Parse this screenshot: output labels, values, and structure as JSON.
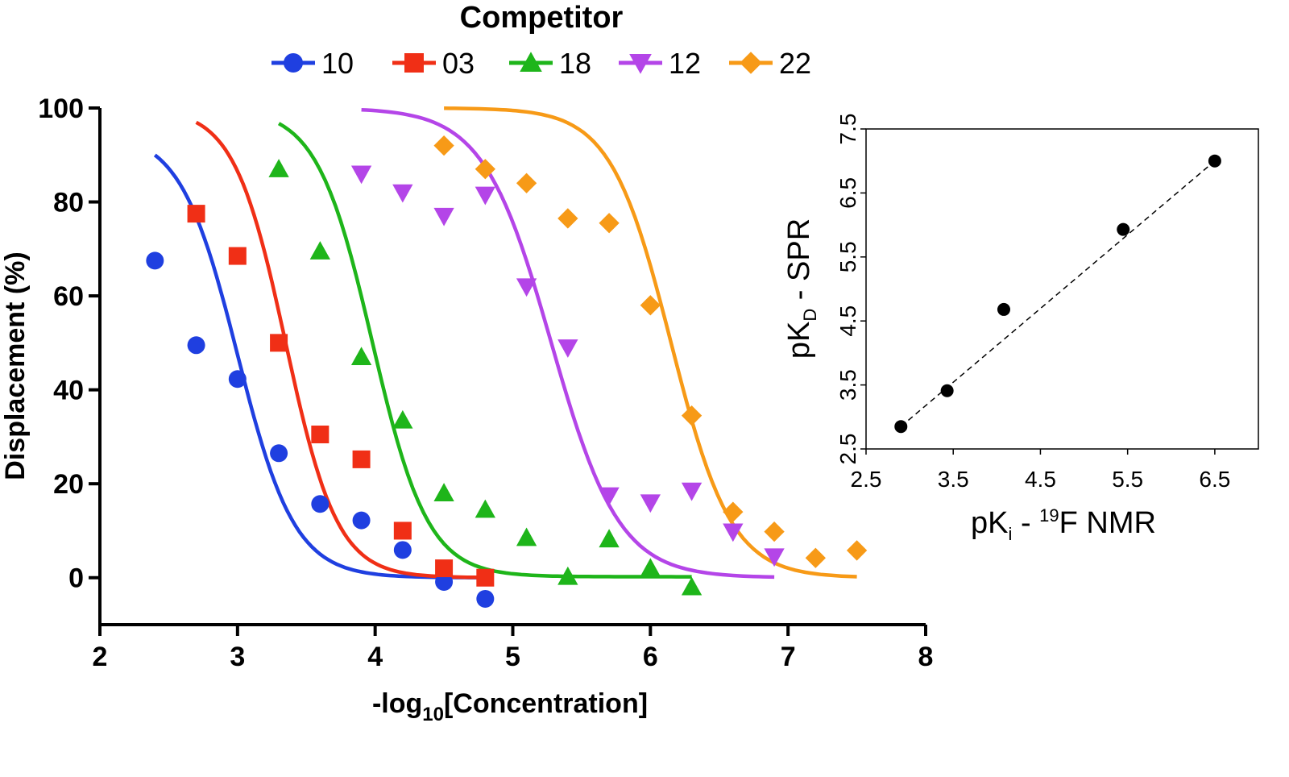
{
  "chart_data": [
    {
      "type": "scatter",
      "legend": {
        "title": "Competitor",
        "placement": "top-center"
      },
      "xlabel": "-log10[Concentration]",
      "ylabel": "Displacement (%)",
      "xlim": [
        2,
        8
      ],
      "ylim": [
        -10,
        100
      ],
      "x_ticks": [
        2,
        3,
        4,
        5,
        6,
        7,
        8
      ],
      "y_ticks": [
        0,
        20,
        40,
        60,
        80,
        100
      ],
      "grid": false,
      "series": [
        {
          "name": "10",
          "color": "#1f3fe0",
          "marker": "circle",
          "x": [
            2.4,
            2.7,
            3.0,
            3.3,
            3.6,
            3.9,
            4.2,
            4.5,
            4.8
          ],
          "y": [
            67.5,
            49.5,
            42.3,
            26.5,
            15.7,
            12.2,
            5.9,
            -0.9,
            -4.5
          ],
          "fit_x": [
            2.4,
            4.8
          ],
          "fit_top": 95,
          "fit_bottom": 0,
          "fit_ec50": 3.0,
          "fit_slope": 0.95
        },
        {
          "name": "03",
          "color": "#f02f16",
          "marker": "square",
          "x": [
            2.7,
            3.0,
            3.3,
            3.6,
            3.9,
            4.2,
            4.5,
            4.8
          ],
          "y": [
            77.5,
            68.5,
            50.0,
            30.5,
            25.2,
            10.0,
            2.0,
            0.0
          ],
          "fit_x": [
            2.7,
            4.8
          ],
          "fit_top": 100,
          "fit_bottom": 0,
          "fit_ec50": 3.35,
          "fit_slope": 1.05
        },
        {
          "name": "18",
          "color": "#1eb51a",
          "marker": "triangle-up",
          "x": [
            3.3,
            3.6,
            3.9,
            4.2,
            4.5,
            4.8,
            5.1,
            5.4,
            5.7,
            6.0,
            6.3
          ],
          "y": [
            87.0,
            69.5,
            47.0,
            33.5,
            18.0,
            14.5,
            8.5,
            0.2,
            8.2,
            2.0,
            -2.0
          ],
          "fit_x": [
            3.3,
            6.3
          ],
          "fit_top": 100,
          "fit_bottom": 0.2,
          "fit_ec50": 3.98,
          "fit_slope": 0.98
        },
        {
          "name": "12",
          "color": "#b445e8",
          "marker": "triangle-down",
          "x": [
            3.9,
            4.2,
            4.5,
            4.8,
            5.1,
            5.4,
            5.7,
            6.0,
            6.3,
            6.6,
            6.9
          ],
          "y": [
            86.0,
            82.0,
            77.0,
            81.5,
            62.0,
            49.0,
            17.5,
            16.0,
            18.5,
            9.8,
            4.5
          ],
          "fit_x": [
            3.9,
            6.9
          ],
          "fit_top": 100,
          "fit_bottom": 0,
          "fit_ec50": 5.28,
          "fit_slope": 0.8
        },
        {
          "name": "22",
          "color": "#f79a17",
          "marker": "diamond",
          "x": [
            4.5,
            4.8,
            5.1,
            5.4,
            5.7,
            6.0,
            6.3,
            6.6,
            6.9,
            7.2,
            7.5
          ],
          "y": [
            92.0,
            87.0,
            84.0,
            76.5,
            75.5,
            58.0,
            34.5,
            14.0,
            9.8,
            4.2,
            5.8
          ],
          "fit_x": [
            4.5,
            7.5
          ],
          "fit_top": 100,
          "fit_bottom": 0,
          "fit_ec50": 6.15,
          "fit_slope": 0.9
        }
      ]
    },
    {
      "type": "scatter",
      "xlabel": "pKi - 19F NMR",
      "ylabel": "pKD - SPR",
      "xlim": [
        2.5,
        7.0
      ],
      "ylim": [
        2.5,
        7.5
      ],
      "x_ticks": [
        "2.5",
        "3.5",
        "4.5",
        "5.5",
        "6.5"
      ],
      "y_ticks": [
        "2.5",
        "3.5",
        "4.5",
        "5.5",
        "6.5",
        "7.5"
      ],
      "grid": false,
      "series": [
        {
          "color": "#000000",
          "marker": "circle",
          "x": [
            2.9,
            3.43,
            4.08,
            5.45,
            6.5
          ],
          "y": [
            2.85,
            3.41,
            4.68,
            5.93,
            7.0
          ]
        }
      ],
      "trendline": {
        "style": "dashed",
        "x": [
          2.9,
          6.5
        ],
        "y": [
          2.85,
          7.0
        ]
      }
    }
  ],
  "labels": {
    "legend_title": "Competitor",
    "main_ylabel": "Displacement (%)",
    "main_xlabel_pre": "-log",
    "main_xlabel_sub": "10",
    "main_xlabel_post": "[Concentration]",
    "inset_ylabel_pre": "pK",
    "inset_ylabel_sub": "D",
    "inset_ylabel_post": " - SPR",
    "inset_xlabel_pre": "pK",
    "inset_xlabel_sub": "i",
    "inset_xlabel_mid": " - ",
    "inset_xlabel_sup": "19",
    "inset_xlabel_post": "F NMR"
  }
}
